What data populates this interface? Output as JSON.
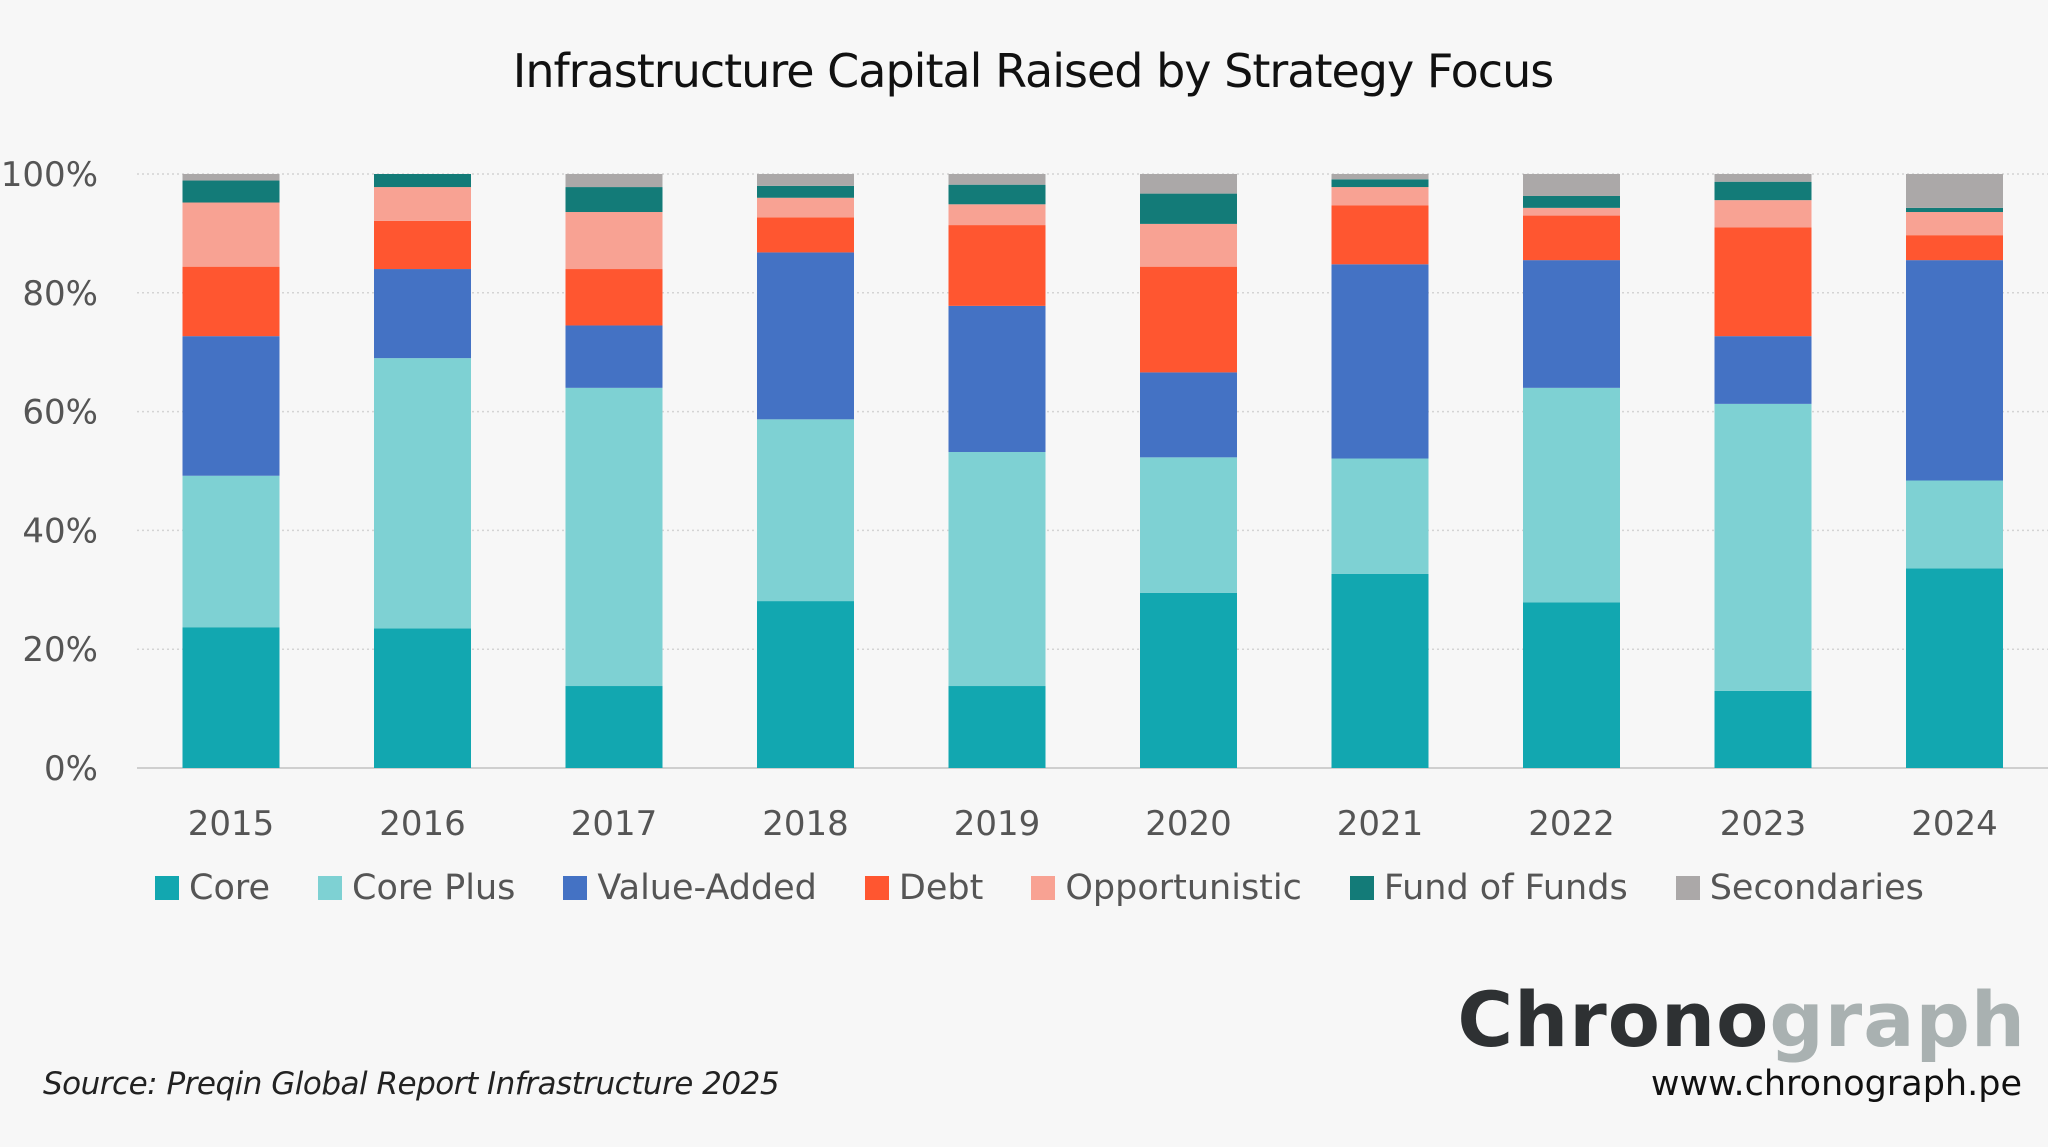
{
  "chart_data": {
    "type": "bar",
    "stacked": true,
    "title": "Infrastructure Capital Raised by Strategy Focus",
    "xlabel": "",
    "ylabel": "",
    "ylim": [
      0,
      100
    ],
    "yticks": [
      "0%",
      "20%",
      "40%",
      "60%",
      "80%",
      "100%"
    ],
    "grid": true,
    "legend_position": "bottom",
    "categories": [
      "2015",
      "2016",
      "2017",
      "2018",
      "2019",
      "2020",
      "2021",
      "2022",
      "2023",
      "2024"
    ],
    "series": [
      {
        "name": "Core",
        "color": "#12A7B0",
        "values": [
          23.7,
          23.5,
          13.8,
          28.1,
          13.8,
          29.5,
          32.7,
          27.9,
          13.0,
          33.6
        ]
      },
      {
        "name": "Core Plus",
        "color": "#7ED1D3",
        "values": [
          25.5,
          45.5,
          50.2,
          30.6,
          39.4,
          22.8,
          19.4,
          36.1,
          48.3,
          14.8
        ]
      },
      {
        "name": "Value-Added",
        "color": "#4472C4",
        "values": [
          23.5,
          15.0,
          10.5,
          28.1,
          24.6,
          14.3,
          32.7,
          21.5,
          11.4,
          37.1
        ]
      },
      {
        "name": "Debt",
        "color": "#FF5630",
        "values": [
          11.7,
          8.1,
          9.5,
          5.9,
          13.6,
          17.8,
          9.9,
          7.5,
          18.3,
          4.2
        ]
      },
      {
        "name": "Opportunistic",
        "color": "#F8A293",
        "values": [
          10.8,
          5.7,
          9.6,
          3.3,
          3.5,
          7.2,
          3.1,
          1.3,
          4.6,
          3.9
        ]
      },
      {
        "name": "Fund of Funds",
        "color": "#137B78",
        "values": [
          3.7,
          2.2,
          4.2,
          2.0,
          3.3,
          5.1,
          1.3,
          2.0,
          3.1,
          0.7
        ]
      },
      {
        "name": "Secondaries",
        "color": "#ABA8A8",
        "values": [
          1.1,
          0,
          2.2,
          2.0,
          1.8,
          3.3,
          0.9,
          3.7,
          1.3,
          5.7
        ]
      }
    ]
  },
  "source": "Source: Preqin Global Report Infrastructure 2025",
  "logo": {
    "part1": "Chrono",
    "part2": "graph"
  },
  "url": "www.chronograph.pe"
}
